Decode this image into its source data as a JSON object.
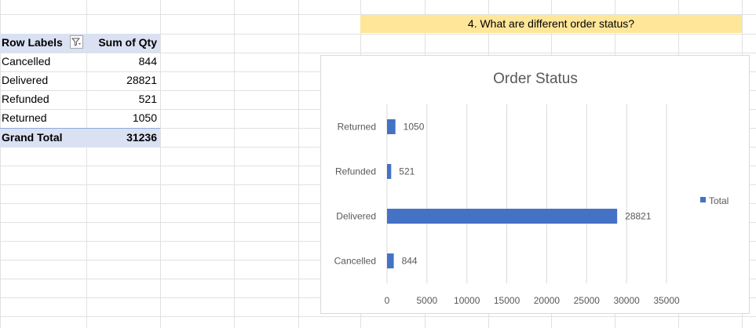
{
  "pivot": {
    "header": {
      "row_labels": "Row Labels",
      "sum_label": "Sum of Qty"
    },
    "rows": [
      {
        "label": "Cancelled",
        "value": "844"
      },
      {
        "label": "Delivered",
        "value": "28821"
      },
      {
        "label": "Refunded",
        "value": "521"
      },
      {
        "label": "Returned",
        "value": "1050"
      }
    ],
    "total": {
      "label": "Grand Total",
      "value": "31236"
    }
  },
  "question": "4. What are different order status?",
  "colors": {
    "bar": "#4472c4",
    "header_fill": "#d9e1f2",
    "question_fill": "#ffe699",
    "gridline": "#d9d9d9"
  },
  "chart_data": {
    "type": "bar",
    "orientation": "horizontal",
    "title": "Order Status",
    "categories": [
      "Cancelled",
      "Delivered",
      "Refunded",
      "Returned"
    ],
    "series": [
      {
        "name": "Total",
        "values": [
          844,
          28821,
          521,
          1050
        ]
      }
    ],
    "xlim": [
      0,
      35000
    ],
    "x_ticks": [
      0,
      5000,
      10000,
      15000,
      20000,
      25000,
      30000,
      35000
    ],
    "grid": true,
    "legend": "right"
  }
}
